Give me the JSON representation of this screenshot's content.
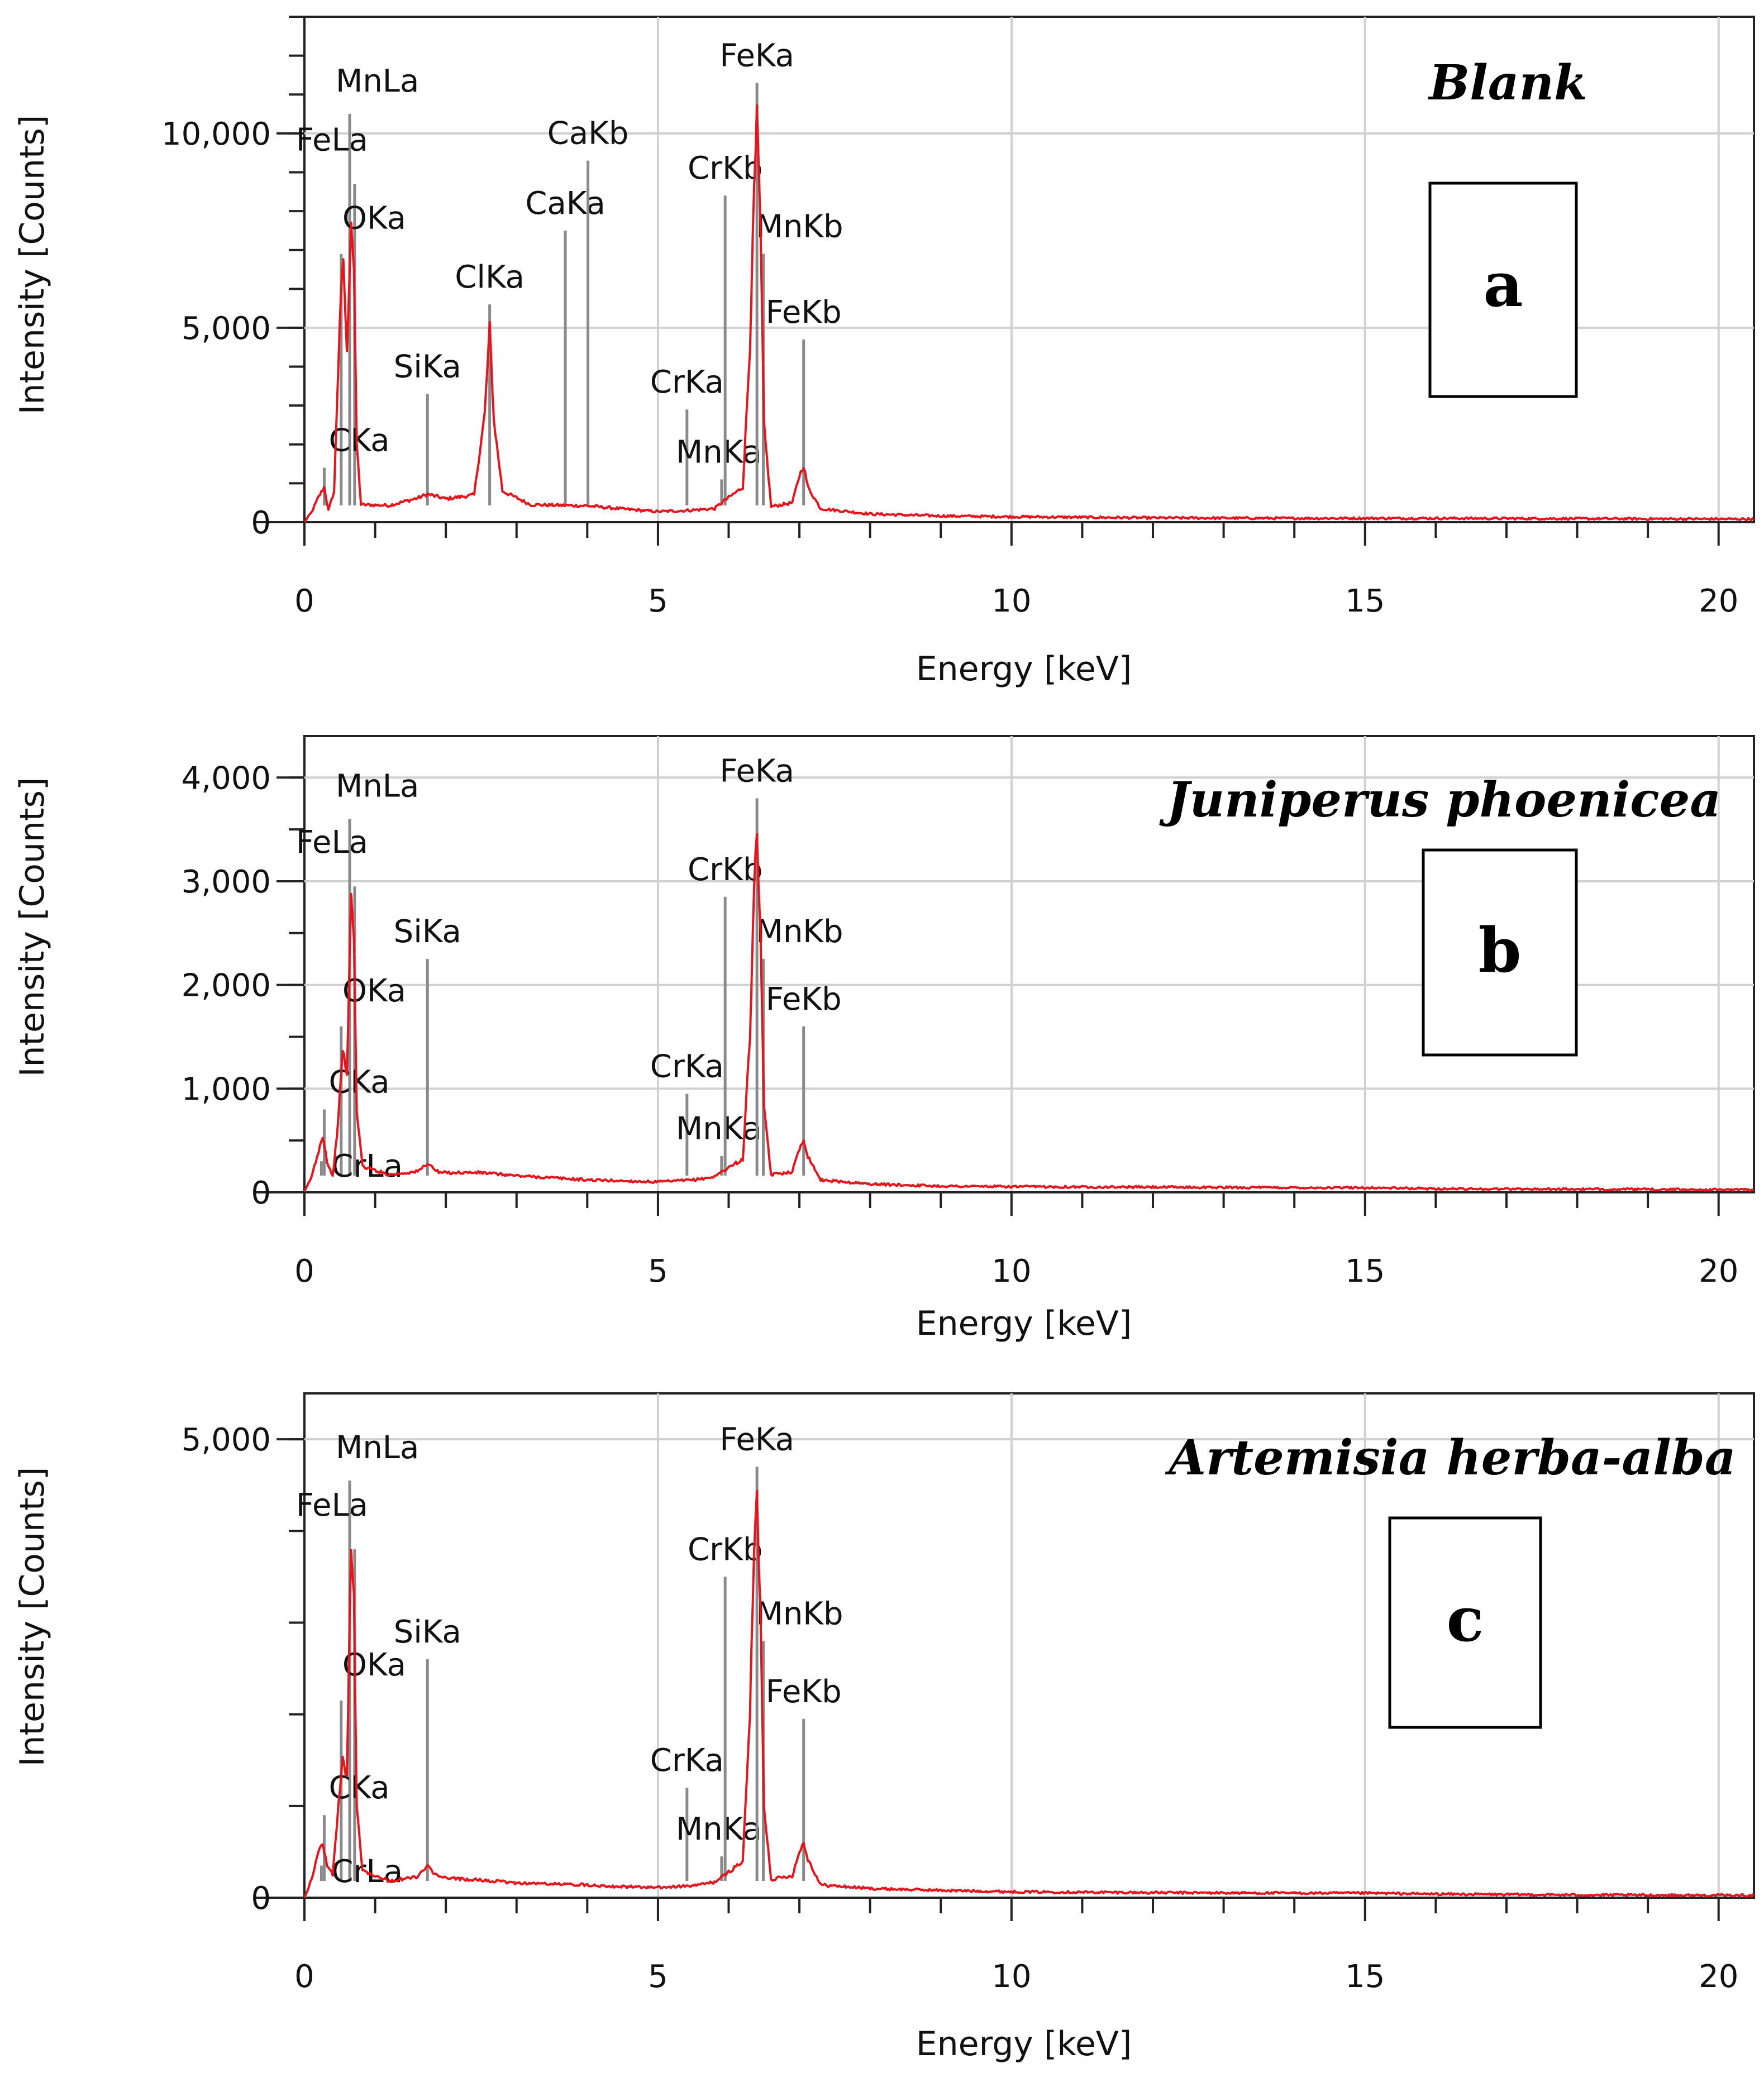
{
  "chart_data": [
    {
      "type": "line",
      "panel": "a",
      "title": "Blank",
      "xlabel": "Energy [keV]",
      "ylabel": "Intensity [Counts]",
      "xlim": [
        0,
        20.5
      ],
      "ylim": [
        0,
        13000
      ],
      "x_ticks": [
        0,
        5,
        10,
        15,
        20
      ],
      "y_ticks": [
        {
          "value": 0,
          "label": "0"
        },
        {
          "value": 5000,
          "label": "5,000"
        },
        {
          "value": 10000,
          "label": "10,000"
        }
      ],
      "y_minor_step": 1000,
      "grid": true,
      "series_color": "#e8141c",
      "spectrum": [
        [
          0,
          0
        ],
        [
          0.1,
          250
        ],
        [
          0.2,
          650
        ],
        [
          0.28,
          900
        ],
        [
          0.34,
          300
        ],
        [
          0.42,
          800
        ],
        [
          0.5,
          5200
        ],
        [
          0.55,
          6800
        ],
        [
          0.6,
          4300
        ],
        [
          0.66,
          7800
        ],
        [
          0.7,
          6500
        ],
        [
          0.74,
          2000
        ],
        [
          0.8,
          450
        ],
        [
          1.2,
          430
        ],
        [
          1.6,
          620
        ],
        [
          1.74,
          720
        ],
        [
          2.0,
          600
        ],
        [
          2.4,
          700
        ],
        [
          2.55,
          2800
        ],
        [
          2.62,
          5000
        ],
        [
          2.68,
          2600
        ],
        [
          2.8,
          800
        ],
        [
          3.2,
          450
        ],
        [
          3.7,
          430
        ],
        [
          4.0,
          420
        ],
        [
          4.5,
          340
        ],
        [
          5.0,
          270
        ],
        [
          5.4,
          300
        ],
        [
          5.8,
          350
        ],
        [
          5.9,
          500
        ],
        [
          6.2,
          900
        ],
        [
          6.3,
          4500
        ],
        [
          6.36,
          8500
        ],
        [
          6.4,
          10400
        ],
        [
          6.45,
          7500
        ],
        [
          6.5,
          2500
        ],
        [
          6.6,
          400
        ],
        [
          6.9,
          500
        ],
        [
          7.0,
          1200
        ],
        [
          7.06,
          1450
        ],
        [
          7.12,
          900
        ],
        [
          7.3,
          350
        ],
        [
          8.0,
          210
        ],
        [
          9.0,
          160
        ],
        [
          10,
          140
        ],
        [
          12,
          110
        ],
        [
          14,
          100
        ],
        [
          16,
          100
        ],
        [
          18,
          90
        ],
        [
          20.5,
          80
        ]
      ],
      "peaks": [
        {
          "label": "MnLa",
          "x": 0.64,
          "top": 10500
        },
        {
          "label": "FeLa",
          "x": 0.71,
          "top": 8700
        },
        {
          "label": "OKa",
          "x": 0.52,
          "top": 6900
        },
        {
          "label": "CKa",
          "x": 0.28,
          "top": 1400
        },
        {
          "label": "SiKa",
          "x": 1.74,
          "top": 3300
        },
        {
          "label": "ClKa",
          "x": 2.62,
          "top": 5600
        },
        {
          "label": "CaKa",
          "x": 3.69,
          "top": 7500
        },
        {
          "label": "CaKb",
          "x": 4.01,
          "top": 9300
        },
        {
          "label": "CrKa",
          "x": 5.41,
          "top": 2900
        },
        {
          "label": "MnKa",
          "x": 5.9,
          "top": 1100
        },
        {
          "label": "CrKb",
          "x": 5.95,
          "top": 8400
        },
        {
          "label": "FeKa",
          "x": 6.4,
          "top": 11300
        },
        {
          "label": "MnKb",
          "x": 6.49,
          "top": 6900
        },
        {
          "label": "FeKb",
          "x": 7.06,
          "top": 4700
        }
      ]
    },
    {
      "type": "line",
      "panel": "b",
      "title": "Juniperus phoenicea",
      "xlabel": "Energy [keV]",
      "ylabel": "Intensity [Counts]",
      "xlim": [
        0,
        20.5
      ],
      "ylim": [
        0,
        4400
      ],
      "x_ticks": [
        0,
        5,
        10,
        15,
        20
      ],
      "y_ticks": [
        {
          "value": 0,
          "label": "0"
        },
        {
          "value": 1000,
          "label": "1,000"
        },
        {
          "value": 2000,
          "label": "2,000"
        },
        {
          "value": 3000,
          "label": "3,000"
        },
        {
          "value": 4000,
          "label": "4,000"
        }
      ],
      "y_minor_step": 500,
      "grid": true,
      "series_color": "#e8141c",
      "spectrum": [
        [
          0,
          0
        ],
        [
          0.1,
          150
        ],
        [
          0.2,
          400
        ],
        [
          0.26,
          550
        ],
        [
          0.32,
          300
        ],
        [
          0.4,
          150
        ],
        [
          0.48,
          700
        ],
        [
          0.54,
          1400
        ],
        [
          0.6,
          1100
        ],
        [
          0.66,
          2900
        ],
        [
          0.7,
          2400
        ],
        [
          0.74,
          800
        ],
        [
          0.82,
          250
        ],
        [
          1.2,
          170
        ],
        [
          1.6,
          200
        ],
        [
          1.74,
          280
        ],
        [
          1.9,
          190
        ],
        [
          2.5,
          190
        ],
        [
          3.0,
          160
        ],
        [
          3.5,
          140
        ],
        [
          4.0,
          120
        ],
        [
          4.5,
          110
        ],
        [
          5.0,
          100
        ],
        [
          5.5,
          120
        ],
        [
          5.8,
          150
        ],
        [
          5.9,
          200
        ],
        [
          6.2,
          320
        ],
        [
          6.3,
          1500
        ],
        [
          6.36,
          2900
        ],
        [
          6.4,
          3500
        ],
        [
          6.45,
          2500
        ],
        [
          6.5,
          800
        ],
        [
          6.6,
          170
        ],
        [
          6.9,
          200
        ],
        [
          7.0,
          420
        ],
        [
          7.06,
          510
        ],
        [
          7.12,
          350
        ],
        [
          7.3,
          120
        ],
        [
          8.0,
          80
        ],
        [
          9.0,
          60
        ],
        [
          10,
          55
        ],
        [
          12,
          50
        ],
        [
          14,
          45
        ],
        [
          15,
          45
        ],
        [
          16,
          35
        ],
        [
          18,
          30
        ],
        [
          20.5,
          25
        ]
      ],
      "peaks": [
        {
          "label": "MnLa",
          "x": 0.64,
          "top": 3600
        },
        {
          "label": "FeLa",
          "x": 0.71,
          "top": 2950
        },
        {
          "label": "OKa",
          "x": 0.52,
          "top": 1600
        },
        {
          "label": "CKa",
          "x": 0.28,
          "top": 800
        },
        {
          "label": "CrLa",
          "x": 0.24,
          "top": 300
        },
        {
          "label": "SiKa",
          "x": 1.74,
          "top": 2250
        },
        {
          "label": "CrKa",
          "x": 5.41,
          "top": 950
        },
        {
          "label": "MnKa",
          "x": 5.9,
          "top": 350
        },
        {
          "label": "CrKb",
          "x": 5.95,
          "top": 2850
        },
        {
          "label": "FeKa",
          "x": 6.4,
          "top": 3800
        },
        {
          "label": "MnKb",
          "x": 6.49,
          "top": 2250
        },
        {
          "label": "FeKb",
          "x": 7.06,
          "top": 1600
        }
      ]
    },
    {
      "type": "line",
      "panel": "c",
      "title": "Artemisia herba-alba",
      "xlabel": "Energy [keV]",
      "ylabel": "Intensity [Counts]",
      "xlim": [
        0,
        20.5
      ],
      "ylim": [
        0,
        5500
      ],
      "x_ticks": [
        0,
        5,
        10,
        15,
        20
      ],
      "y_ticks": [
        {
          "value": 0,
          "label": "0"
        },
        {
          "value": 5000,
          "label": "5,000"
        }
      ],
      "y_minor_step": 1000,
      "grid": true,
      "series_color": "#e8141c",
      "spectrum": [
        [
          0,
          0
        ],
        [
          0.1,
          200
        ],
        [
          0.2,
          500
        ],
        [
          0.26,
          600
        ],
        [
          0.32,
          350
        ],
        [
          0.4,
          250
        ],
        [
          0.48,
          1000
        ],
        [
          0.54,
          1500
        ],
        [
          0.6,
          1300
        ],
        [
          0.66,
          3900
        ],
        [
          0.7,
          3300
        ],
        [
          0.74,
          1000
        ],
        [
          0.82,
          300
        ],
        [
          1.2,
          180
        ],
        [
          1.6,
          230
        ],
        [
          1.74,
          340
        ],
        [
          1.9,
          220
        ],
        [
          2.5,
          190
        ],
        [
          3.0,
          160
        ],
        [
          3.5,
          150
        ],
        [
          4.0,
          140
        ],
        [
          4.5,
          120
        ],
        [
          5.0,
          110
        ],
        [
          5.5,
          130
        ],
        [
          5.8,
          170
        ],
        [
          5.9,
          220
        ],
        [
          6.2,
          400
        ],
        [
          6.3,
          2000
        ],
        [
          6.36,
          3800
        ],
        [
          6.4,
          4350
        ],
        [
          6.45,
          3100
        ],
        [
          6.5,
          1000
        ],
        [
          6.6,
          200
        ],
        [
          6.9,
          240
        ],
        [
          7.0,
          500
        ],
        [
          7.06,
          600
        ],
        [
          7.12,
          420
        ],
        [
          7.3,
          140
        ],
        [
          8.0,
          100
        ],
        [
          9.0,
          80
        ],
        [
          10,
          65
        ],
        [
          12,
          55
        ],
        [
          14,
          50
        ],
        [
          15,
          50
        ],
        [
          16,
          40
        ],
        [
          18,
          30
        ],
        [
          20.5,
          25
        ]
      ],
      "peaks": [
        {
          "label": "MnLa",
          "x": 0.64,
          "top": 4550
        },
        {
          "label": "FeLa",
          "x": 0.71,
          "top": 3800
        },
        {
          "label": "OKa",
          "x": 0.52,
          "top": 2150
        },
        {
          "label": "CKa",
          "x": 0.28,
          "top": 900
        },
        {
          "label": "CrLa",
          "x": 0.24,
          "top": 350
        },
        {
          "label": "SiKa",
          "x": 1.74,
          "top": 2600
        },
        {
          "label": "CrKa",
          "x": 5.41,
          "top": 1200
        },
        {
          "label": "MnKa",
          "x": 5.9,
          "top": 450
        },
        {
          "label": "CrKb",
          "x": 5.95,
          "top": 3500
        },
        {
          "label": "FeKa",
          "x": 6.4,
          "top": 4700
        },
        {
          "label": "MnKb",
          "x": 6.49,
          "top": 2800
        },
        {
          "label": "FeKb",
          "x": 7.06,
          "top": 1950
        }
      ]
    }
  ]
}
